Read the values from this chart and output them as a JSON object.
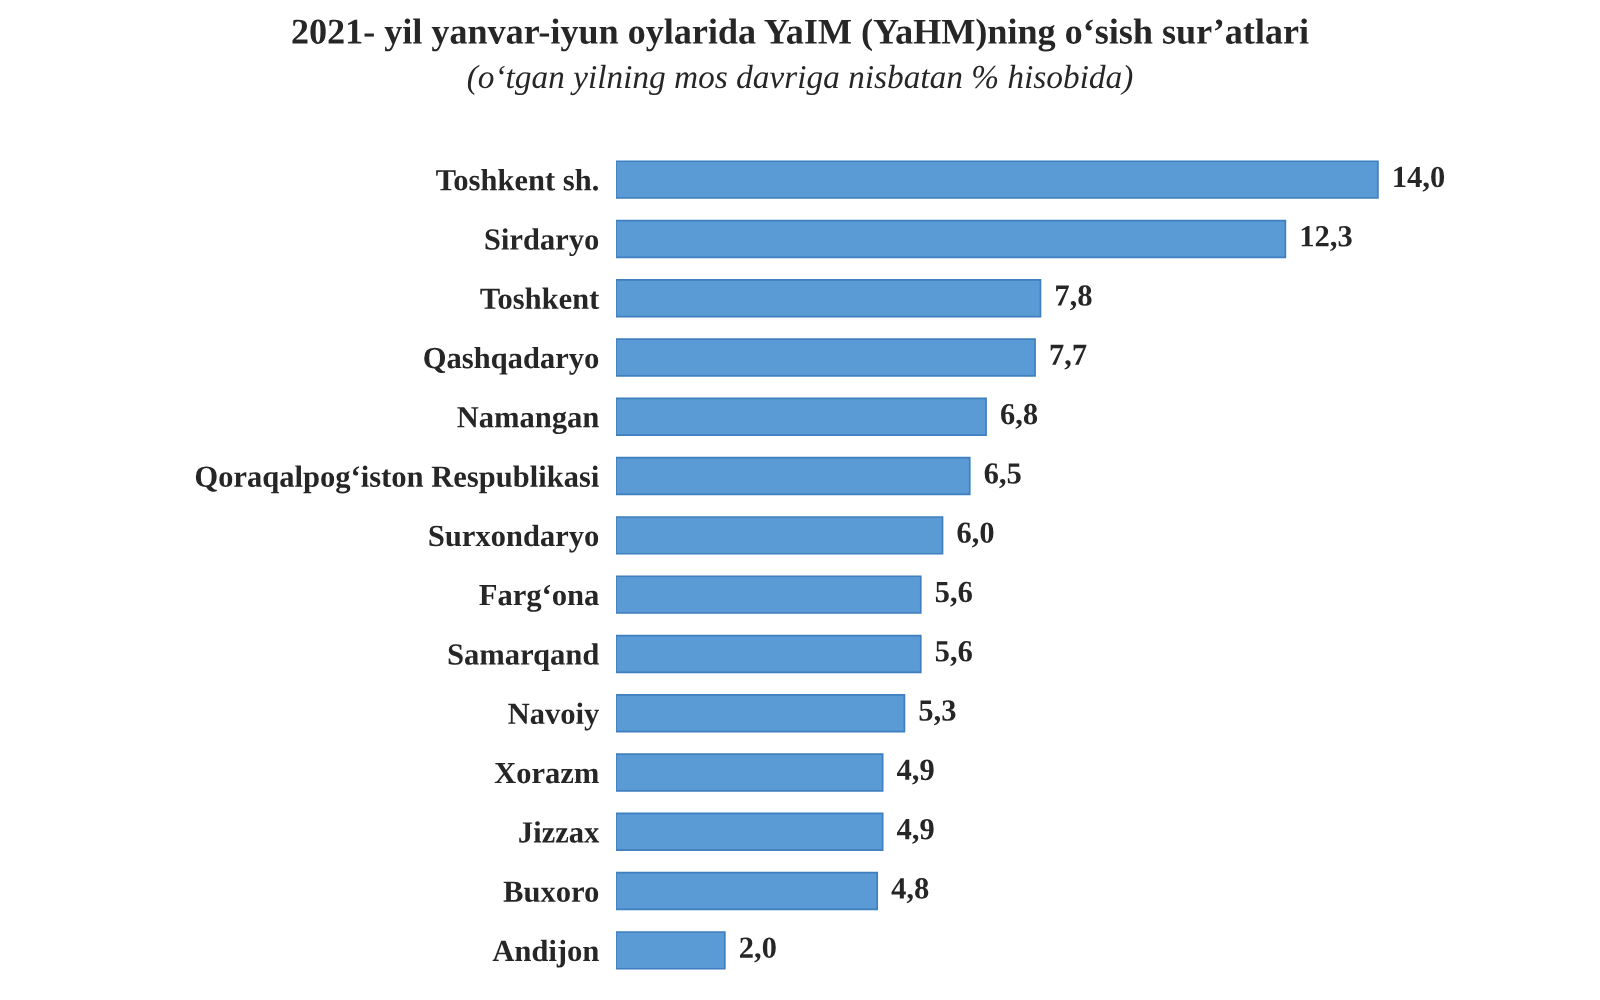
{
  "chart_data": {
    "type": "bar",
    "orientation": "horizontal",
    "title": "2021- yil yanvar-iyun oylarida YaIM (YaHM)ning o‘sish sur’atlari",
    "subtitle": "(o‘tgan yilning mos davriga nisbatan % hisobida)",
    "categories": [
      "Toshkent sh.",
      "Sirdaryo",
      "Toshkent",
      "Qashqadaryo",
      "Namangan",
      "Qoraqalpog‘iston Respublikasi",
      "Surxondaryo",
      "Farg‘ona",
      "Samarqand",
      "Navoiy",
      "Xorazm",
      "Jizzax",
      "Buxoro",
      "Andijon"
    ],
    "values": [
      14.0,
      12.3,
      7.8,
      7.7,
      6.8,
      6.5,
      6.0,
      5.6,
      5.6,
      5.3,
      4.9,
      4.9,
      4.8,
      2.0
    ],
    "value_labels": [
      "14,0",
      "12,3",
      "7,8",
      "7,7",
      "6,8",
      "6,5",
      "6,0",
      "5,6",
      "5,6",
      "5,3",
      "4,9",
      "4,9",
      "4,8",
      "2,0"
    ],
    "color": "#5b9bd5",
    "grid": false,
    "legend": false
  }
}
